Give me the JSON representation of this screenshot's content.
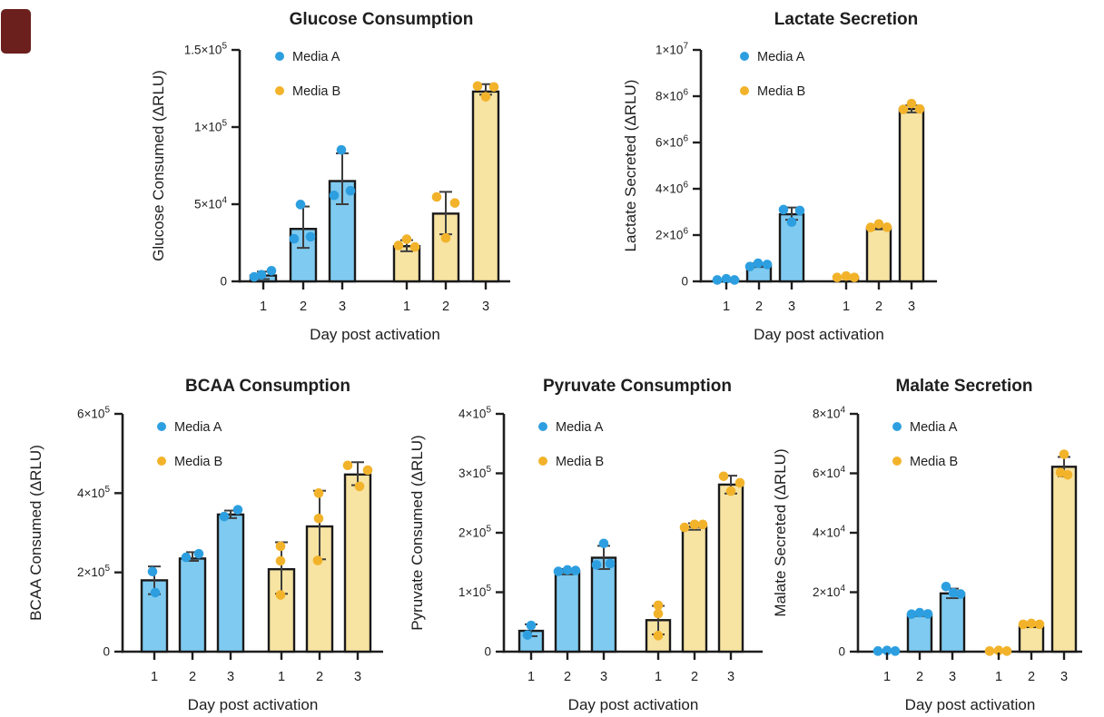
{
  "figure": {
    "background": "#ffffff"
  },
  "corner_marker": {
    "color": "#6b201d"
  },
  "legend": {
    "items": [
      {
        "key": "A",
        "label": "Media A"
      },
      {
        "key": "B",
        "label": "Media B"
      }
    ]
  },
  "styles": {
    "media_a": {
      "point": "#2d9fe0",
      "fill": "#7fcaf0"
    },
    "media_b": {
      "point": "#f2b32b",
      "fill": "#f7e3a2"
    },
    "bar_stroke": "#1a1a1a",
    "error_color": "#3d3d3d",
    "text_color": "#1e1e1e"
  },
  "x_axis": {
    "label": "Day post activation",
    "ticks": [
      "1",
      "2",
      "3",
      "1",
      "2",
      "3"
    ]
  },
  "chart_data": [
    {
      "id": "glucose",
      "type": "bar",
      "title": "Glucose Consumption",
      "ylabel": "Glucose Consumed (ΔRLU)",
      "xlabel": "Day post activation",
      "ylim": [
        0,
        150000
      ],
      "yticks": [
        {
          "v": 0,
          "label": "0"
        },
        {
          "v": 50000,
          "label": "5×10^4"
        },
        {
          "v": 100000,
          "label": "1×10^5"
        },
        {
          "v": 150000,
          "label": "1.5×10^5"
        }
      ],
      "bars": [
        {
          "series": "A",
          "day": "1",
          "mean": 3800,
          "err": [
            1500,
            6300
          ],
          "points": [
            {
              "v": 2900,
              "dx": -10
            },
            {
              "v": 4300,
              "dx": -2
            },
            {
              "v": 6900,
              "dx": 9
            }
          ]
        },
        {
          "series": "A",
          "day": "2",
          "mean": 34000,
          "err": [
            21700,
            48500
          ],
          "points": [
            {
              "v": 27600,
              "dx": -10
            },
            {
              "v": 49800,
              "dx": -3
            },
            {
              "v": 28900,
              "dx": 8
            }
          ]
        },
        {
          "series": "A",
          "day": "3",
          "mean": 65000,
          "err": [
            50000,
            83000
          ],
          "points": [
            {
              "v": 55700,
              "dx": -9
            },
            {
              "v": 85200,
              "dx": -1
            },
            {
              "v": 58700,
              "dx": 9
            }
          ]
        },
        {
          "series": "B",
          "day": "1",
          "mean": 22800,
          "err": [
            19500,
            26700
          ],
          "points": [
            {
              "v": 23300,
              "dx": -9
            },
            {
              "v": 27300,
              "dx": 0
            },
            {
              "v": 22300,
              "dx": 9
            }
          ]
        },
        {
          "series": "B",
          "day": "2",
          "mean": 43900,
          "err": [
            30500,
            58000
          ],
          "points": [
            {
              "v": 54700,
              "dx": -10
            },
            {
              "v": 28100,
              "dx": 0
            },
            {
              "v": 50800,
              "dx": 10
            }
          ]
        },
        {
          "series": "B",
          "day": "3",
          "mean": 123000,
          "err": [
            121000,
            127800
          ],
          "points": [
            {
              "v": 126600,
              "dx": -9
            },
            {
              "v": 119600,
              "dx": 0
            },
            {
              "v": 126000,
              "dx": 9
            }
          ]
        }
      ]
    },
    {
      "id": "lactate",
      "type": "bar",
      "title": "Lactate Secretion",
      "ylabel": "Lactate Secreted (ΔRLU)",
      "xlabel": "Day post activation",
      "ylim": [
        0,
        10000000
      ],
      "yticks": [
        {
          "v": 0,
          "label": "0"
        },
        {
          "v": 2000000,
          "label": "2×10^6"
        },
        {
          "v": 4000000,
          "label": "4×10^6"
        },
        {
          "v": 6000000,
          "label": "6×10^6"
        },
        {
          "v": 8000000,
          "label": "8×10^6"
        },
        {
          "v": 10000000,
          "label": "1×10^7"
        }
      ],
      "bars": [
        {
          "series": "A",
          "day": "1",
          "mean": 80000,
          "err": null,
          "points": [
            {
              "v": 60000,
              "dx": -10
            },
            {
              "v": 110000,
              "dx": 0
            },
            {
              "v": 60000,
              "dx": 9
            }
          ]
        },
        {
          "series": "A",
          "day": "2",
          "mean": 695000,
          "err": [
            620000,
            780000
          ],
          "points": [
            {
              "v": 640000,
              "dx": -10
            },
            {
              "v": 780000,
              "dx": -1
            },
            {
              "v": 730000,
              "dx": 9
            }
          ]
        },
        {
          "series": "A",
          "day": "3",
          "mean": 2900000,
          "err": [
            2660000,
            3190000
          ],
          "points": [
            {
              "v": 3100000,
              "dx": -9
            },
            {
              "v": 2560000,
              "dx": 0
            },
            {
              "v": 3060000,
              "dx": 9
            }
          ]
        },
        {
          "series": "B",
          "day": "1",
          "mean": 180000,
          "err": null,
          "points": [
            {
              "v": 170000,
              "dx": -10
            },
            {
              "v": 230000,
              "dx": 0
            },
            {
              "v": 170000,
              "dx": 9
            }
          ]
        },
        {
          "series": "B",
          "day": "2",
          "mean": 2300000,
          "err": [
            2250000,
            2420000
          ],
          "points": [
            {
              "v": 2330000,
              "dx": -9
            },
            {
              "v": 2480000,
              "dx": 0
            },
            {
              "v": 2340000,
              "dx": 9
            }
          ]
        },
        {
          "series": "B",
          "day": "3",
          "mean": 7450000,
          "err": [
            7300000,
            7600000
          ],
          "points": [
            {
              "v": 7430000,
              "dx": -9
            },
            {
              "v": 7680000,
              "dx": 0
            },
            {
              "v": 7450000,
              "dx": 9
            }
          ]
        }
      ]
    },
    {
      "id": "bcaa",
      "type": "bar",
      "title": "BCAA Consumption",
      "ylabel": "BCAA Consumed (ΔRLU)",
      "xlabel": "Day post activation",
      "ylim": [
        0,
        600000
      ],
      "yticks": [
        {
          "v": 0,
          "label": "0"
        },
        {
          "v": 200000,
          "label": "2×10^5"
        },
        {
          "v": 400000,
          "label": "4×10^5"
        },
        {
          "v": 600000,
          "label": "6×10^5"
        }
      ],
      "bars": [
        {
          "series": "A",
          "day": "1",
          "mean": 180000,
          "err": [
            145000,
            215000
          ],
          "points": [
            {
              "v": 202000,
              "dx": -2
            },
            {
              "v": 149000,
              "dx": 1
            }
          ]
        },
        {
          "series": "A",
          "day": "2",
          "mean": 235000,
          "err": [
            229000,
            251000
          ],
          "points": [
            {
              "v": 238000,
              "dx": -7
            },
            {
              "v": 247000,
              "dx": 7
            }
          ]
        },
        {
          "series": "A",
          "day": "3",
          "mean": 346000,
          "err": [
            337000,
            356000
          ],
          "points": [
            {
              "v": 341000,
              "dx": -7
            },
            {
              "v": 358000,
              "dx": 8
            }
          ]
        },
        {
          "series": "B",
          "day": "1",
          "mean": 208000,
          "err": [
            146000,
            276000
          ],
          "points": [
            {
              "v": 266000,
              "dx": -1
            },
            {
              "v": 229000,
              "dx": -1
            },
            {
              "v": 143000,
              "dx": -1
            }
          ]
        },
        {
          "series": "B",
          "day": "2",
          "mean": 316000,
          "err": [
            233000,
            406000
          ],
          "points": [
            {
              "v": 400000,
              "dx": -1
            },
            {
              "v": 336000,
              "dx": -1
            },
            {
              "v": 230000,
              "dx": -2
            }
          ]
        },
        {
          "series": "B",
          "day": "3",
          "mean": 447000,
          "err": [
            420000,
            478000
          ],
          "points": [
            {
              "v": 470000,
              "dx": -11
            },
            {
              "v": 417000,
              "dx": 2
            },
            {
              "v": 458000,
              "dx": 11
            }
          ]
        }
      ]
    },
    {
      "id": "pyruvate",
      "type": "bar",
      "title": "Pyruvate Consumption",
      "ylabel": "Pyruvate Consumed (ΔRLU)",
      "xlabel": "Day post activation",
      "ylim": [
        0,
        400000
      ],
      "yticks": [
        {
          "v": 0,
          "label": "0"
        },
        {
          "v": 100000,
          "label": "1×10^5"
        },
        {
          "v": 200000,
          "label": "2×10^5"
        },
        {
          "v": 300000,
          "label": "3×10^5"
        },
        {
          "v": 400000,
          "label": "4×10^5"
        }
      ],
      "bars": [
        {
          "series": "A",
          "day": "1",
          "mean": 35000,
          "err": [
            26000,
            46000
          ],
          "points": [
            {
              "v": 44000,
              "dx": 0
            },
            {
              "v": 28000,
              "dx": -4
            }
          ]
        },
        {
          "series": "A",
          "day": "2",
          "mean": 134500,
          "err": [
            130000,
            139000
          ],
          "points": [
            {
              "v": 135000,
              "dx": -10
            },
            {
              "v": 137500,
              "dx": 0
            },
            {
              "v": 136500,
              "dx": 9
            }
          ]
        },
        {
          "series": "A",
          "day": "3",
          "mean": 158000,
          "err": [
            139000,
            178000
          ],
          "points": [
            {
              "v": 146000,
              "dx": -8
            },
            {
              "v": 182000,
              "dx": 0
            },
            {
              "v": 148000,
              "dx": 7
            }
          ]
        },
        {
          "series": "B",
          "day": "1",
          "mean": 53000,
          "err": [
            29000,
            77000
          ],
          "points": [
            {
              "v": 78000,
              "dx": 0
            },
            {
              "v": 64000,
              "dx": 0
            },
            {
              "v": 27000,
              "dx": 0
            }
          ]
        },
        {
          "series": "B",
          "day": "2",
          "mean": 210000,
          "err": [
            205000,
            216000
          ],
          "points": [
            {
              "v": 209000,
              "dx": -11
            },
            {
              "v": 214000,
              "dx": 0
            },
            {
              "v": 214000,
              "dx": 9
            }
          ]
        },
        {
          "series": "B",
          "day": "3",
          "mean": 281000,
          "err": [
            266000,
            296000
          ],
          "points": [
            {
              "v": 295000,
              "dx": -8
            },
            {
              "v": 270000,
              "dx": 0
            },
            {
              "v": 284000,
              "dx": 10
            }
          ]
        }
      ]
    },
    {
      "id": "malate",
      "type": "bar",
      "title": "Malate Secretion",
      "ylabel": "Malate Secreted (ΔRLU)",
      "xlabel": "Day post activation",
      "ylim": [
        0,
        80000
      ],
      "yticks": [
        {
          "v": 0,
          "label": "0"
        },
        {
          "v": 20000,
          "label": "2×10^4"
        },
        {
          "v": 40000,
          "label": "4×10^4"
        },
        {
          "v": 60000,
          "label": "6×10^4"
        },
        {
          "v": 80000,
          "label": "8×10^4"
        }
      ],
      "bars": [
        {
          "series": "A",
          "day": "1",
          "mean": 300,
          "err": null,
          "points": [
            {
              "v": 200,
              "dx": -10
            },
            {
              "v": 400,
              "dx": 0
            },
            {
              "v": 200,
              "dx": 9
            }
          ]
        },
        {
          "series": "A",
          "day": "2",
          "mean": 12400,
          "err": [
            12000,
            13100
          ],
          "points": [
            {
              "v": 12600,
              "dx": -9
            },
            {
              "v": 13100,
              "dx": 0
            },
            {
              "v": 12700,
              "dx": 9
            }
          ]
        },
        {
          "series": "A",
          "day": "3",
          "mean": 19600,
          "err": [
            18000,
            21200
          ],
          "points": [
            {
              "v": 21900,
              "dx": -7
            },
            {
              "v": 19800,
              "dx": 1
            },
            {
              "v": 19400,
              "dx": 9
            }
          ]
        },
        {
          "series": "B",
          "day": "1",
          "mean": 300,
          "err": null,
          "points": [
            {
              "v": 200,
              "dx": -10
            },
            {
              "v": 400,
              "dx": 0
            },
            {
              "v": 200,
              "dx": 9
            }
          ]
        },
        {
          "series": "B",
          "day": "2",
          "mean": 8300,
          "err": null,
          "points": [
            {
              "v": 9200,
              "dx": -9
            },
            {
              "v": 9500,
              "dx": 0
            },
            {
              "v": 9200,
              "dx": 9
            }
          ]
        },
        {
          "series": "B",
          "day": "3",
          "mean": 62200,
          "err": [
            59000,
            65500
          ],
          "points": [
            {
              "v": 66400,
              "dx": 0
            },
            {
              "v": 60300,
              "dx": -4
            },
            {
              "v": 59500,
              "dx": 4
            }
          ]
        }
      ]
    }
  ]
}
